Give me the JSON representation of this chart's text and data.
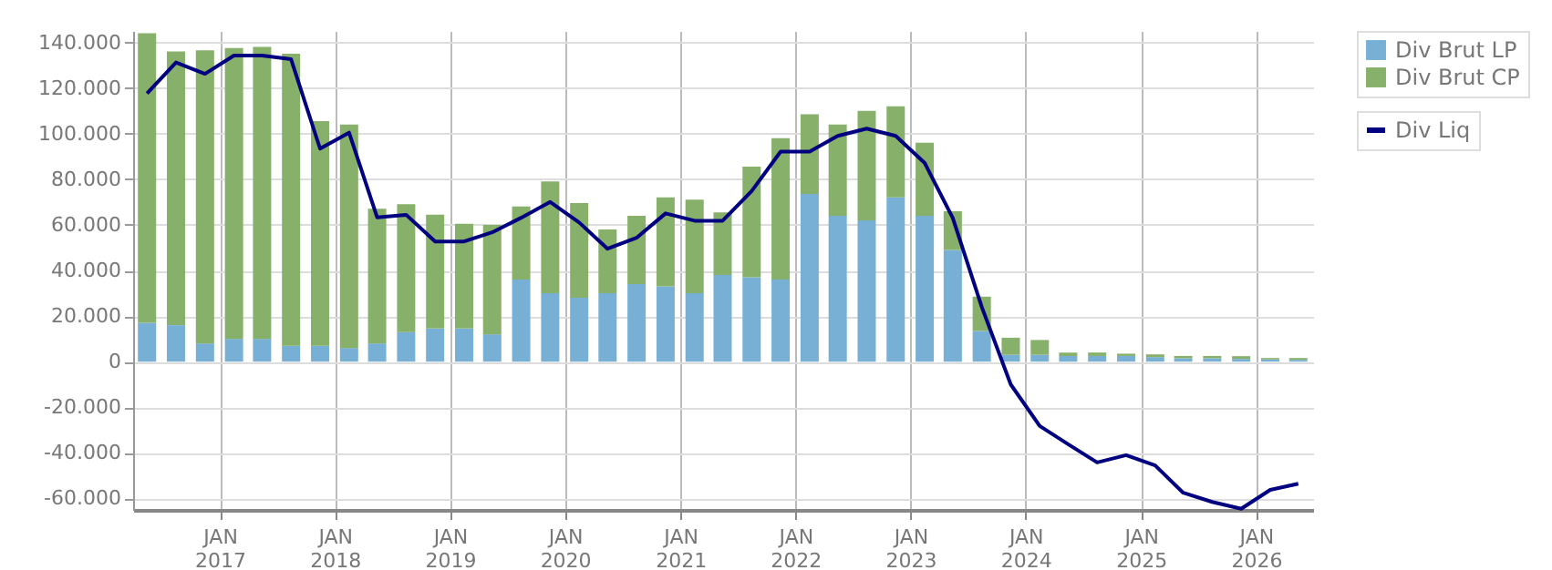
{
  "chart_data": {
    "type": "bar",
    "stacked": true,
    "x": [
      "2016-05-15",
      "2016-08-15",
      "2016-11-15",
      "2017-02-15",
      "2017-05-15",
      "2017-08-15",
      "2017-11-15",
      "2018-02-15",
      "2018-05-15",
      "2018-08-15",
      "2018-11-15",
      "2019-02-15",
      "2019-05-15",
      "2019-08-15",
      "2019-11-15",
      "2020-02-15",
      "2020-05-15",
      "2020-08-15",
      "2020-11-15",
      "2021-02-15",
      "2021-05-15",
      "2021-08-15",
      "2021-11-15",
      "2022-02-15",
      "2022-05-15",
      "2022-08-15",
      "2022-11-15",
      "2023-02-15",
      "2023-05-15",
      "2023-08-15",
      "2023-11-15",
      "2024-02-15",
      "2024-05-15",
      "2024-08-15",
      "2024-11-15",
      "2025-02-15",
      "2025-05-15",
      "2025-08-15",
      "2025-11-15",
      "2026-02-15",
      "2026-05-15"
    ],
    "series": [
      {
        "name": "Div Brut LP",
        "color": "#77b0d4",
        "values": [
          17000,
          16000,
          8000,
          10000,
          10000,
          7000,
          7000,
          6000,
          8000,
          13000,
          14500,
          14500,
          12000,
          36000,
          30000,
          28000,
          30000,
          34000,
          33000,
          30000,
          38000,
          37000,
          36000,
          73500,
          64000,
          62000,
          72000,
          64000,
          49000,
          13500,
          3000,
          3000,
          2500,
          2500,
          2500,
          2000,
          1500,
          1500,
          1200,
          1000,
          800
        ]
      },
      {
        "name": "Div Brut CP",
        "color": "#87b06a",
        "values": [
          127000,
          120000,
          128500,
          127500,
          128000,
          128000,
          98500,
          98000,
          59000,
          56000,
          50000,
          46000,
          48000,
          32000,
          49000,
          41500,
          28000,
          30000,
          39000,
          41000,
          27500,
          48500,
          62000,
          35000,
          40000,
          48000,
          40000,
          32000,
          17000,
          15000,
          7500,
          6500,
          1500,
          1500,
          1000,
          1200,
          1000,
          1000,
          1200,
          600,
          800
        ]
      },
      {
        "name": "Div Liq",
        "color": "#000080",
        "type": "line",
        "values": [
          117600,
          131200,
          126200,
          134200,
          134200,
          132600,
          93400,
          100400,
          63300,
          64400,
          52700,
          52700,
          56700,
          63100,
          70000,
          61000,
          49500,
          54300,
          65000,
          61800,
          61800,
          74800,
          92100,
          92100,
          99000,
          102200,
          99000,
          87100,
          63000,
          24000,
          -10000,
          -28200,
          -36200,
          -44200,
          -41000,
          -45500,
          -57500,
          -61500,
          -64500,
          -56200,
          -53500
        ]
      }
    ],
    "xlim": [
      "2016-04-01",
      "2026-07-01"
    ],
    "xticks": [
      {
        "value": "2017-01-01",
        "label": "JAN 2017"
      },
      {
        "value": "2018-01-01",
        "label": "JAN 2018"
      },
      {
        "value": "2019-01-01",
        "label": "JAN 2019"
      },
      {
        "value": "2020-01-01",
        "label": "JAN 2020"
      },
      {
        "value": "2021-01-01",
        "label": "JAN 2021"
      },
      {
        "value": "2022-01-01",
        "label": "JAN 2022"
      },
      {
        "value": "2023-01-01",
        "label": "JAN 2023"
      },
      {
        "value": "2024-01-01",
        "label": "JAN 2024"
      },
      {
        "value": "2025-01-01",
        "label": "JAN 2025"
      },
      {
        "value": "2026-01-01",
        "label": "JAN 2026"
      }
    ],
    "ylim": [
      -65000,
      145000
    ],
    "yticks": [
      {
        "value": -60000,
        "label": "-60.000"
      },
      {
        "value": -40000,
        "label": "-40.000"
      },
      {
        "value": -20000,
        "label": "-20.000"
      },
      {
        "value": 0,
        "label": "0"
      },
      {
        "value": 20000,
        "label": "20.000"
      },
      {
        "value": 40000,
        "label": "40.000"
      },
      {
        "value": 60000,
        "label": "60.000"
      },
      {
        "value": 80000,
        "label": "80.000"
      },
      {
        "value": 100000,
        "label": "100.000"
      },
      {
        "value": 120000,
        "label": "120.000"
      },
      {
        "value": 140000,
        "label": "140.000"
      }
    ],
    "grid": true,
    "legend": "top right",
    "line_style": "solid",
    "marker": "none"
  }
}
